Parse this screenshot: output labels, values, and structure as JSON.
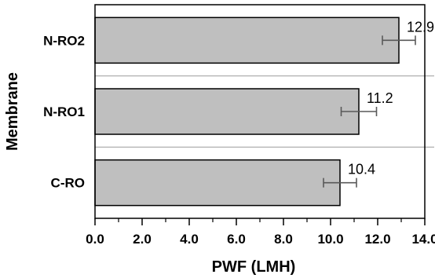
{
  "chart_data": {
    "type": "bar",
    "orientation": "horizontal",
    "categories": [
      "N-RO2",
      "N-RO1",
      "C-RO"
    ],
    "values": [
      12.9,
      11.2,
      10.4
    ],
    "error": [
      0.7,
      0.75,
      0.7
    ],
    "data_labels": [
      "12.9",
      "11.2",
      "10.4"
    ],
    "title": "",
    "xlabel": "PWF (LMH)",
    "ylabel": "Membrane",
    "xlim": [
      0,
      14
    ],
    "xticks": [
      0,
      2,
      4,
      6,
      8,
      10,
      12,
      14
    ],
    "xtick_labels": [
      "0.0",
      "2.0",
      "4.0",
      "6.0",
      "8.0",
      "10.0",
      "12.0",
      "14.0"
    ],
    "separators_between_categories": true,
    "grid": false,
    "legend": "none",
    "bar_color": "#bfbfbf",
    "bar_edge_color": "#000000",
    "error_bar_color": "#595959",
    "separator_color": "#a6a6a6"
  }
}
